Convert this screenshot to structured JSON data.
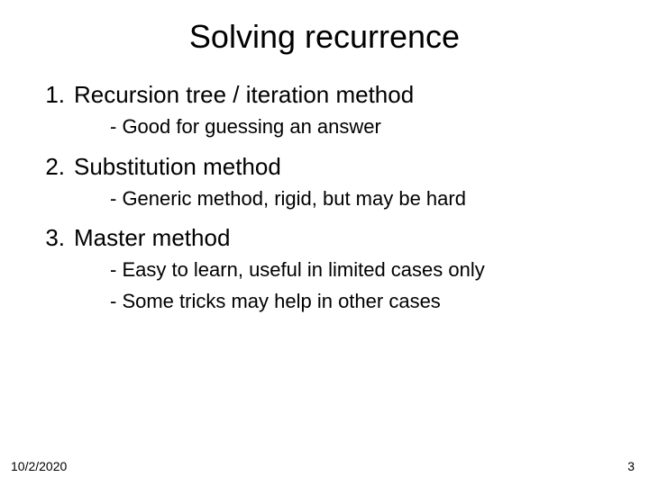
{
  "title": "Solving recurrence",
  "title_fontsize": 36,
  "body_fontsize_head": 26,
  "body_fontsize_sub": 22,
  "text_color": "#000000",
  "background_color": "#ffffff",
  "items": [
    {
      "num": "1.",
      "title": "Recursion tree / iteration method",
      "subs": [
        "- Good for guessing an answer"
      ]
    },
    {
      "num": "2.",
      "title": "Substitution method",
      "subs": [
        "- Generic method, rigid, but may be hard"
      ]
    },
    {
      "num": "3.",
      "title": "Master method",
      "subs": [
        "- Easy to learn, useful in limited cases only",
        "- Some tricks may help in other cases"
      ]
    }
  ],
  "footer": {
    "date": "10/2/2020",
    "page": "3"
  }
}
